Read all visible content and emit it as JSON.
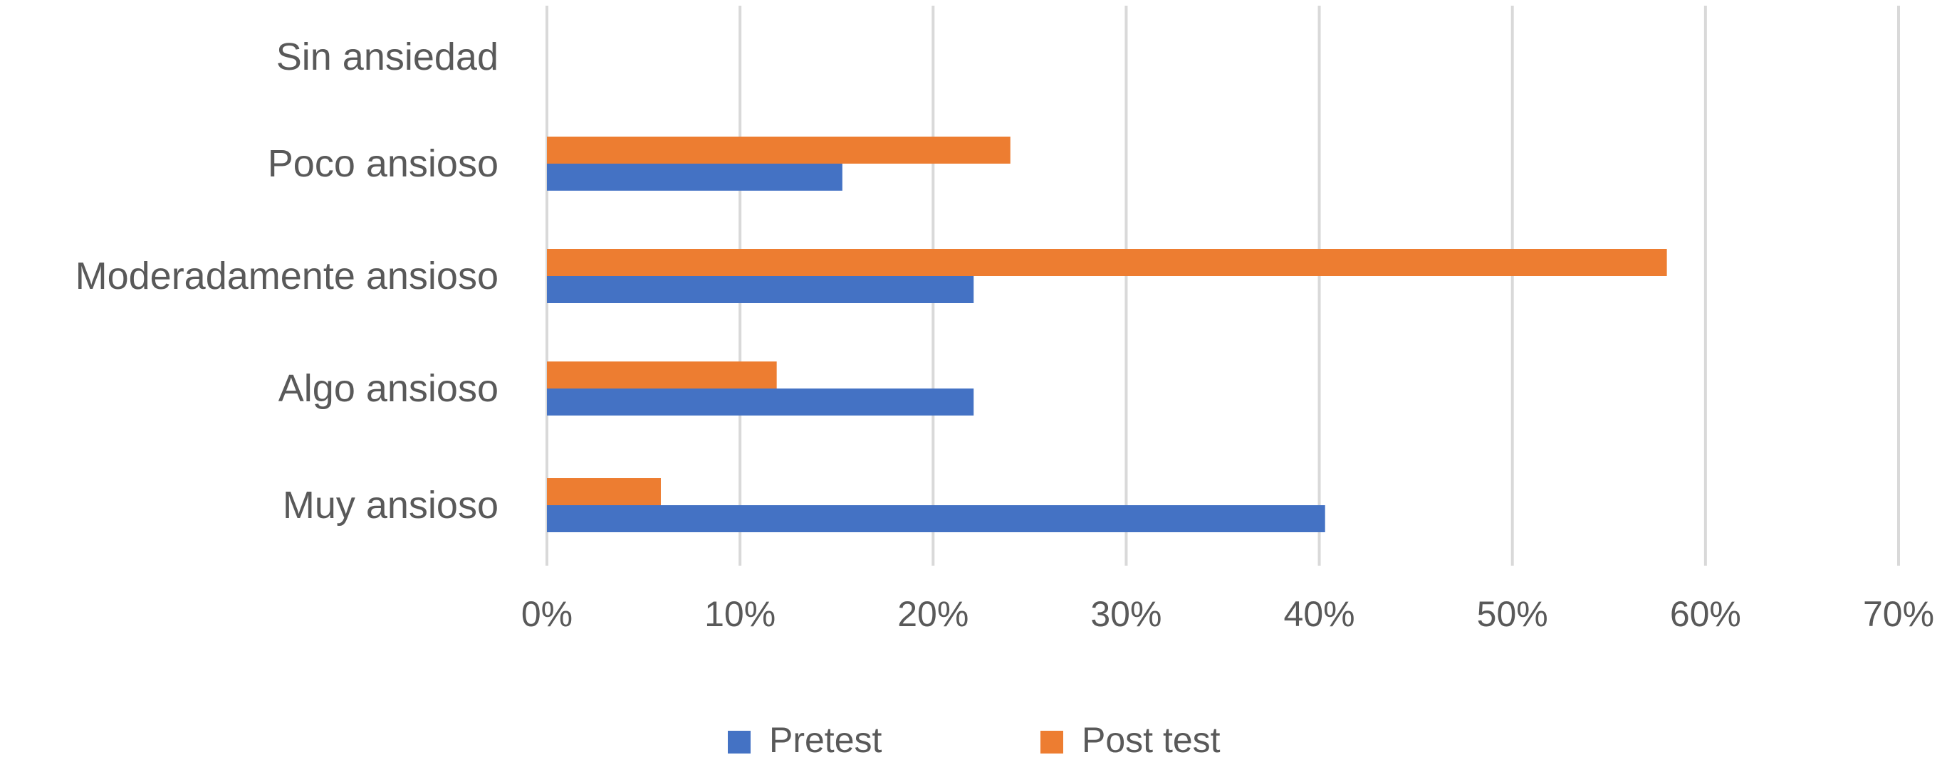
{
  "chart_data": {
    "type": "bar",
    "orientation": "horizontal",
    "categories": [
      "Sin ansiedad",
      "Poco ansioso",
      "Moderadamente ansioso",
      "Algo ansioso",
      "Muy ansioso"
    ],
    "series": [
      {
        "name": "Pretest",
        "color": "#4472C4",
        "values": [
          0,
          15.3,
          22.1,
          22.1,
          40.3
        ]
      },
      {
        "name": "Post test",
        "color": "#ED7D31",
        "values": [
          0,
          24.0,
          58.0,
          11.9,
          5.9
        ]
      }
    ],
    "xlim": [
      0,
      70
    ],
    "x_ticks": [
      "0%",
      "10%",
      "20%",
      "30%",
      "40%",
      "50%",
      "60%",
      "70%"
    ],
    "grid": true,
    "legend_position": "bottom",
    "title": "",
    "xlabel": "",
    "ylabel": ""
  }
}
